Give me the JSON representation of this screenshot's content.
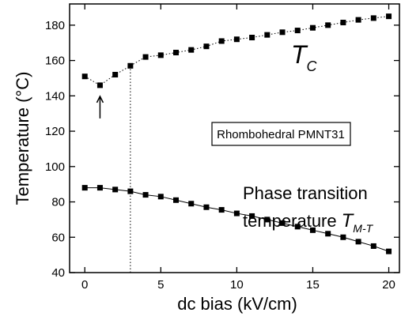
{
  "chart_data": {
    "type": "line",
    "x_label": "dc bias (kV/cm)",
    "y_label": "Temperature (°C)",
    "x": [
      0,
      1,
      2,
      3,
      4,
      5,
      6,
      7,
      8,
      9,
      10,
      11,
      12,
      13,
      14,
      15,
      16,
      17,
      18,
      19,
      20
    ],
    "series": [
      {
        "color": "#000000",
        "style": "dotted",
        "values": [
          151,
          146,
          152,
          157,
          162,
          163,
          164.5,
          166,
          168,
          171,
          172,
          173,
          174.5,
          176,
          177,
          178.5,
          180,
          181.5,
          183,
          184,
          185
        ]
      },
      {
        "color": "#000000",
        "style": "solid",
        "values": [
          88,
          88,
          87,
          86,
          84,
          83,
          81,
          79,
          77,
          75.5,
          73.5,
          72,
          70,
          68,
          66,
          64,
          62,
          60,
          57.5,
          55,
          52
        ]
      }
    ],
    "xlim": [
      -1,
      20.7
    ],
    "ylim": [
      40,
      192
    ],
    "xticks": [
      0,
      5,
      10,
      15,
      20
    ],
    "yticks": [
      40,
      60,
      80,
      100,
      120,
      140,
      160,
      180
    ],
    "vline_x": 3,
    "arrow_x": 1,
    "tc_label": {
      "main": "T",
      "sub": "C"
    },
    "box_label": "Rhombohedral PMNT31",
    "tmt_label": {
      "line1": "Phase transition",
      "line2": "temperature",
      "main": "T",
      "sub": "M-T"
    }
  }
}
